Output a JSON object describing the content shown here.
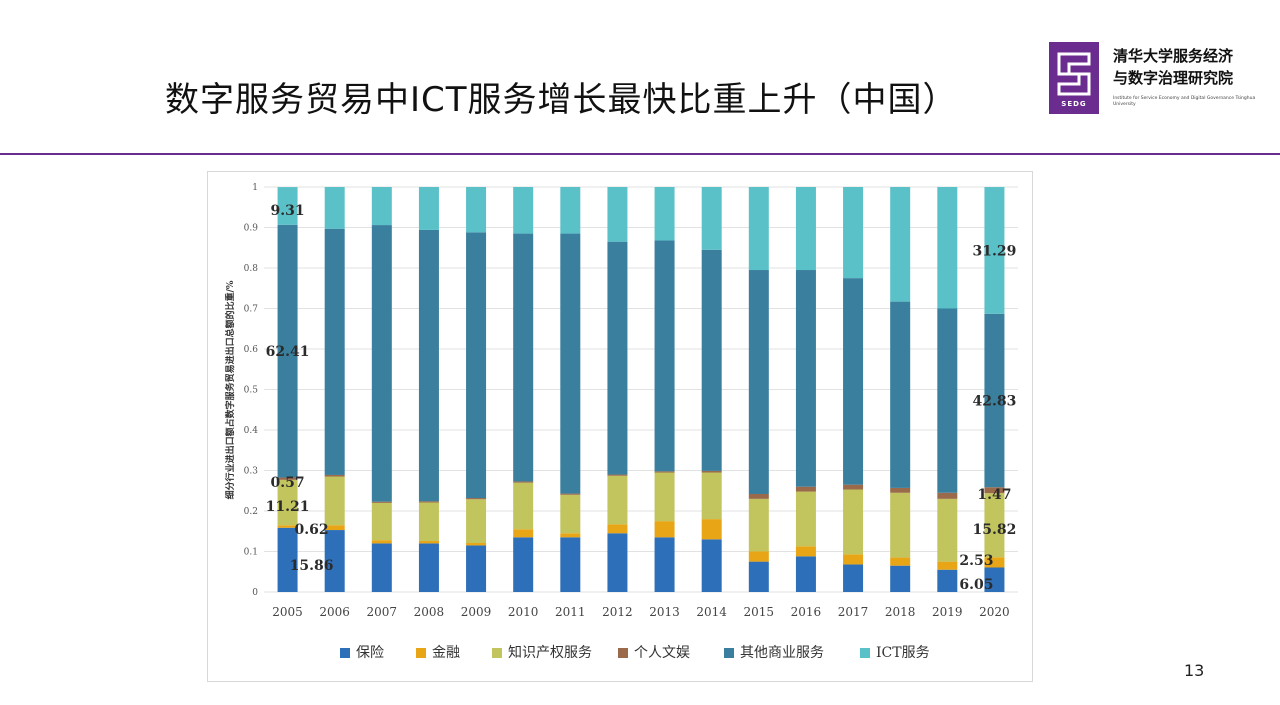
{
  "slide": {
    "title": "数字服务贸易中ICT服务增长最快比重上升（中国）",
    "page_number": "13"
  },
  "logo": {
    "name_line1": "清华大学服务经济",
    "name_line2": "与数字治理研究院",
    "acronym": "SEDG",
    "subtitle": "Institute for Service Economy and Digital Governance Tsinghua University",
    "color": "#6a2c8f"
  },
  "chart_data": {
    "type": "bar",
    "stacked": true,
    "ylabel": "细分行业进出口额占数字服务贸易进出口总额的比重/%",
    "ylim": [
      0,
      1
    ],
    "yticks": [
      0,
      0.1,
      0.2,
      0.3,
      0.4,
      0.5,
      0.6,
      0.7,
      0.8,
      0.9,
      1
    ],
    "grid": true,
    "legend_position": "bottom",
    "categories": [
      "2005",
      "2006",
      "2007",
      "2008",
      "2009",
      "2010",
      "2011",
      "2012",
      "2013",
      "2014",
      "2015",
      "2016",
      "2017",
      "2018",
      "2019",
      "2020"
    ],
    "series": [
      {
        "name": "保险",
        "color": "#2e6fba",
        "values": [
          0.1586,
          0.153,
          0.12,
          0.12,
          0.115,
          0.135,
          0.135,
          0.145,
          0.135,
          0.13,
          0.075,
          0.088,
          0.068,
          0.065,
          0.055,
          0.0605
        ]
      },
      {
        "name": "金融",
        "color": "#e8a617",
        "values": [
          0.0062,
          0.012,
          0.008,
          0.006,
          0.006,
          0.02,
          0.01,
          0.022,
          0.04,
          0.05,
          0.025,
          0.025,
          0.025,
          0.02,
          0.02,
          0.0253
        ]
      },
      {
        "name": "知识产权服务",
        "color": "#c2c45e",
        "values": [
          0.1121,
          0.12,
          0.092,
          0.095,
          0.108,
          0.115,
          0.095,
          0.12,
          0.12,
          0.115,
          0.13,
          0.135,
          0.16,
          0.16,
          0.155,
          0.1582
        ]
      },
      {
        "name": "个人文娱",
        "color": "#9a6a4a",
        "values": [
          0.0057,
          0.004,
          0.003,
          0.003,
          0.003,
          0.003,
          0.003,
          0.003,
          0.003,
          0.004,
          0.012,
          0.012,
          0.012,
          0.012,
          0.015,
          0.0147
        ]
      },
      {
        "name": "其他商业服务",
        "color": "#3a7f9d",
        "values": [
          0.6241,
          0.608,
          0.683,
          0.67,
          0.656,
          0.612,
          0.642,
          0.575,
          0.57,
          0.546,
          0.553,
          0.535,
          0.51,
          0.46,
          0.455,
          0.4283
        ]
      },
      {
        "name": "ICT服务",
        "color": "#5bc1c9",
        "values": [
          0.0931,
          0.103,
          0.094,
          0.106,
          0.112,
          0.115,
          0.115,
          0.135,
          0.132,
          0.155,
          0.205,
          0.205,
          0.225,
          0.283,
          0.3,
          0.3129
        ]
      }
    ],
    "annotations": [
      {
        "category": "2005",
        "series": "ICT服务",
        "text": "9.31"
      },
      {
        "category": "2005",
        "series": "其他商业服务",
        "text": "62.41"
      },
      {
        "category": "2005",
        "series": "个人文娱",
        "text": "0.57"
      },
      {
        "category": "2005",
        "series": "知识产权服务",
        "text": "11.21"
      },
      {
        "category": "2005",
        "series": "金融",
        "text": "0.62"
      },
      {
        "category": "2005",
        "series": "保险",
        "text": "15.86"
      },
      {
        "category": "2020",
        "series": "ICT服务",
        "text": "31.29"
      },
      {
        "category": "2020",
        "series": "其他商业服务",
        "text": "42.83"
      },
      {
        "category": "2020",
        "series": "个人文娱",
        "text": "1.47"
      },
      {
        "category": "2020",
        "series": "知识产权服务",
        "text": "15.82"
      },
      {
        "category": "2020",
        "series": "金融",
        "text": "2.53"
      },
      {
        "category": "2020",
        "series": "保险",
        "text": "6.05"
      }
    ]
  }
}
